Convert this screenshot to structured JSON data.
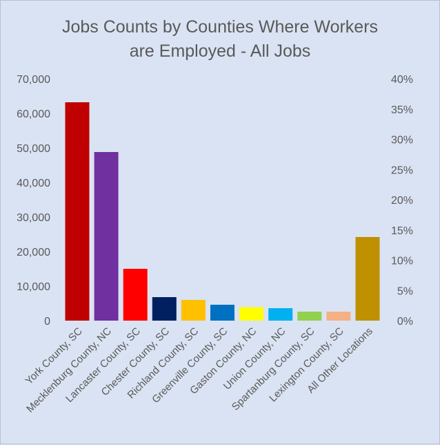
{
  "chart_data": {
    "type": "bar",
    "title_lines": [
      "Jobs Counts by Counties Where Workers",
      "are Employed - All Jobs"
    ],
    "categories": [
      "York County, SC",
      "Mecklenburg County, NC",
      "Lancaster County, SC",
      "Chester County, SC",
      "Richland County, SC",
      "Greenville County, SC",
      "Gaston County, NC",
      "Union County, NC",
      "Spartanburg County, SC",
      "Lexington County, SC",
      "All Other Locations"
    ],
    "values": [
      63200,
      48800,
      15000,
      6800,
      6000,
      4600,
      3900,
      3600,
      2600,
      2600,
      24200
    ],
    "colors": [
      "#c00000",
      "#7030a0",
      "#ff0000",
      "#002060",
      "#ffc000",
      "#0070c0",
      "#ffff00",
      "#00b0f0",
      "#92d050",
      "#f4b183",
      "#bf9000"
    ],
    "ylim": [
      0,
      70000
    ],
    "yticks": [
      "0",
      "10,000",
      "20,000",
      "30,000",
      "40,000",
      "50,000",
      "60,000",
      "70,000"
    ],
    "y2lim": [
      0,
      40
    ],
    "y2ticks": [
      "0%",
      "5%",
      "10%",
      "15%",
      "20%",
      "25%",
      "30%",
      "35%",
      "40%"
    ],
    "grid": false,
    "legend": "none"
  }
}
